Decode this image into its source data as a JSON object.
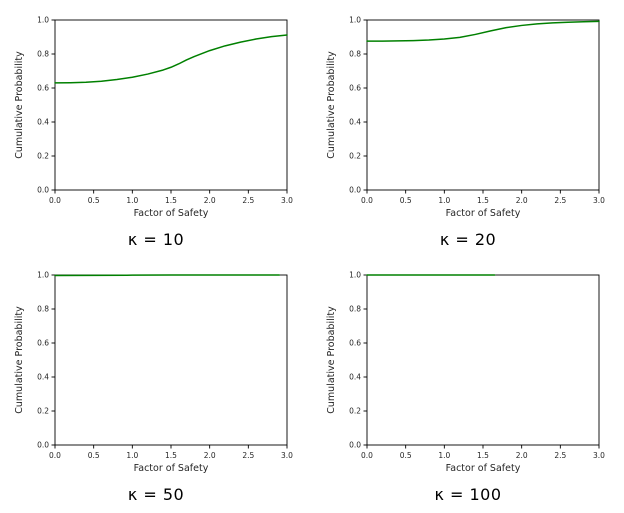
{
  "page": {
    "background": "#ffffff",
    "text_color": "#262626"
  },
  "chart_data": [
    {
      "type": "line",
      "title": "κ = 10",
      "xlabel": "Factor of Safety",
      "ylabel": "Cumulative Probability",
      "xlim": [
        0.0,
        3.0
      ],
      "ylim": [
        0.0,
        1.0
      ],
      "xtick_labels": [
        "0.0",
        "0.5",
        "1.0",
        "1.5",
        "2.0",
        "2.5",
        "3.0"
      ],
      "ytick_labels": [
        "0.0",
        "0.2",
        "0.4",
        "0.6",
        "0.8",
        "1.0"
      ],
      "grid": false,
      "legend": "none",
      "line_color": "#008000",
      "series": [
        {
          "name": "cdf",
          "x": [
            0.0,
            0.2,
            0.4,
            0.6,
            0.8,
            1.0,
            1.2,
            1.4,
            1.5,
            1.6,
            1.7,
            1.8,
            2.0,
            2.2,
            2.4,
            2.6,
            2.8,
            3.0
          ],
          "y": [
            0.63,
            0.631,
            0.634,
            0.64,
            0.65,
            0.663,
            0.682,
            0.706,
            0.722,
            0.742,
            0.765,
            0.785,
            0.82,
            0.848,
            0.87,
            0.888,
            0.902,
            0.912
          ]
        }
      ]
    },
    {
      "type": "line",
      "title": "κ = 20",
      "xlabel": "Factor of Safety",
      "ylabel": "Cumulative Probability",
      "xlim": [
        0.0,
        3.0
      ],
      "ylim": [
        0.0,
        1.0
      ],
      "xtick_labels": [
        "0.0",
        "0.5",
        "1.0",
        "1.5",
        "2.0",
        "2.5",
        "3.0"
      ],
      "ytick_labels": [
        "0.0",
        "0.2",
        "0.4",
        "0.6",
        "0.8",
        "1.0"
      ],
      "grid": false,
      "legend": "none",
      "line_color": "#008000",
      "series": [
        {
          "name": "cdf",
          "x": [
            0.0,
            0.2,
            0.4,
            0.6,
            0.8,
            1.0,
            1.2,
            1.4,
            1.6,
            1.8,
            2.0,
            2.2,
            2.4,
            2.6,
            2.8,
            3.0
          ],
          "y": [
            0.876,
            0.876,
            0.877,
            0.879,
            0.882,
            0.888,
            0.898,
            0.915,
            0.936,
            0.955,
            0.968,
            0.977,
            0.983,
            0.987,
            0.99,
            0.992
          ]
        }
      ]
    },
    {
      "type": "line",
      "title": "κ = 50",
      "xlabel": "Factor of Safety",
      "ylabel": "Cumulative Probability",
      "xlim": [
        0.0,
        3.0
      ],
      "ylim": [
        0.0,
        1.0
      ],
      "xtick_labels": [
        "0.0",
        "0.5",
        "1.0",
        "1.5",
        "2.0",
        "2.5",
        "3.0"
      ],
      "ytick_labels": [
        "0.0",
        "0.2",
        "0.4",
        "0.6",
        "0.8",
        "1.0"
      ],
      "grid": false,
      "legend": "none",
      "line_color": "#008000",
      "series": [
        {
          "name": "cdf",
          "x": [
            0.0,
            0.5,
            1.0,
            1.5,
            2.0,
            2.5,
            2.9
          ],
          "y": [
            0.997,
            0.998,
            0.999,
            1.0,
            1.0,
            1.0,
            1.0
          ]
        }
      ]
    },
    {
      "type": "line",
      "title": "κ = 100",
      "xlabel": "Factor of Safety",
      "ylabel": "Cumulative Probability",
      "xlim": [
        0.0,
        3.0
      ],
      "ylim": [
        0.0,
        1.0
      ],
      "xtick_labels": [
        "0.0",
        "0.5",
        "1.0",
        "1.5",
        "2.0",
        "2.5",
        "3.0"
      ],
      "ytick_labels": [
        "0.0",
        "0.2",
        "0.4",
        "0.6",
        "0.8",
        "1.0"
      ],
      "grid": false,
      "legend": "none",
      "line_color": "#008000",
      "series": [
        {
          "name": "cdf",
          "x": [
            0.0,
            0.4,
            0.8,
            1.2,
            1.65
          ],
          "y": [
            1.0,
            1.0,
            1.0,
            1.0,
            1.0
          ]
        }
      ]
    }
  ]
}
